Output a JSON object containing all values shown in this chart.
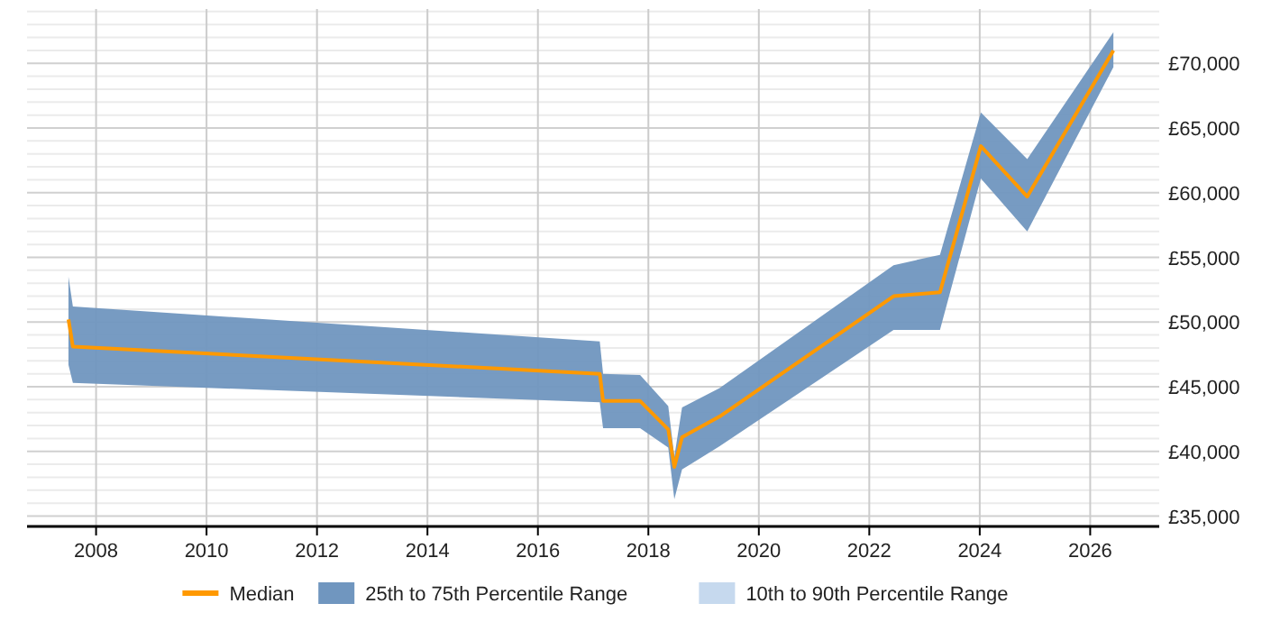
{
  "chart_data": {
    "type": "line",
    "x": [
      2007.5,
      2007.58,
      2017.12,
      2017.18,
      2017.85,
      2018.36,
      2018.47,
      2018.61,
      2019.29,
      2022.44,
      2023.28,
      2024.02,
      2024.86,
      2026.42
    ],
    "series": [
      {
        "name": "Median",
        "type": "line",
        "color": "#ff9900",
        "values": [
          50200,
          48100,
          46000,
          43900,
          43900,
          41700,
          38800,
          41100,
          42700,
          52000,
          52300,
          63600,
          59700,
          71000
        ],
        "lower": [
          46700,
          45300,
          43800,
          41800,
          41800,
          40300,
          36300,
          38600,
          40400,
          49400,
          49400,
          61100,
          57000,
          69700
        ],
        "upper": [
          53500,
          51200,
          48500,
          46000,
          45900,
          43500,
          39600,
          43400,
          44900,
          54400,
          55200,
          66200,
          62600,
          72400
        ]
      },
      {
        "name": "25th to 75th Percentile Range",
        "type": "area",
        "color": "#7096bf",
        "values": [
          null,
          null,
          null,
          null,
          null,
          null,
          null,
          null,
          null,
          null,
          null,
          null,
          null,
          null
        ],
        "lower": [
          null,
          null,
          null,
          null,
          null,
          null,
          null,
          null,
          null,
          null,
          null,
          null,
          null,
          null
        ]
      },
      {
        "name": "10th to 90th Percentile Range",
        "type": "area",
        "color": "#c6d9ee",
        "values": [
          null,
          null,
          null,
          null,
          null,
          null,
          null,
          null,
          null,
          null,
          null,
          null,
          null,
          null
        ],
        "lower": [
          null,
          null,
          null,
          null,
          null,
          null,
          null,
          null,
          null,
          null,
          null,
          null,
          null,
          null
        ]
      }
    ],
    "xlim": [
      2006.75,
      2027.25
    ],
    "xticks": [
      2008,
      2010,
      2012,
      2014,
      2016,
      2018,
      2020,
      2022,
      2024,
      2026
    ],
    "ylim": [
      34200,
      74200
    ],
    "yticks": [
      {
        "value": 35000,
        "label": "£35,000"
      },
      {
        "value": 36000,
        "label": null
      },
      {
        "value": 37000,
        "label": null
      },
      {
        "value": 38000,
        "label": null
      },
      {
        "value": 39000,
        "label": null
      },
      {
        "value": 40000,
        "label": "£40,000"
      },
      {
        "value": 41000,
        "label": null
      },
      {
        "value": 42000,
        "label": null
      },
      {
        "value": 43000,
        "label": null
      },
      {
        "value": 44000,
        "label": null
      },
      {
        "value": 45000,
        "label": "£45,000"
      },
      {
        "value": 46000,
        "label": null
      },
      {
        "value": 47000,
        "label": null
      },
      {
        "value": 48000,
        "label": null
      },
      {
        "value": 49000,
        "label": null
      },
      {
        "value": 50000,
        "label": "£50,000"
      },
      {
        "value": 51000,
        "label": null
      },
      {
        "value": 52000,
        "label": null
      },
      {
        "value": 53000,
        "label": null
      },
      {
        "value": 54000,
        "label": null
      },
      {
        "value": 55000,
        "label": "£55,000"
      },
      {
        "value": 56000,
        "label": null
      },
      {
        "value": 57000,
        "label": null
      },
      {
        "value": 58000,
        "label": null
      },
      {
        "value": 59000,
        "label": null
      },
      {
        "value": 60000,
        "label": "£60,000"
      },
      {
        "value": 61000,
        "label": null
      },
      {
        "value": 62000,
        "label": null
      },
      {
        "value": 63000,
        "label": null
      },
      {
        "value": 64000,
        "label": null
      },
      {
        "value": 65000,
        "label": "£65,000"
      },
      {
        "value": 66000,
        "label": null
      },
      {
        "value": 67000,
        "label": null
      },
      {
        "value": 68000,
        "label": null
      },
      {
        "value": 69000,
        "label": null
      },
      {
        "value": 70000,
        "label": "£70,000"
      },
      {
        "value": 71000,
        "label": null
      },
      {
        "value": 72000,
        "label": null
      },
      {
        "value": 73000,
        "label": null
      },
      {
        "value": 74000,
        "label": null
      }
    ],
    "grid": true,
    "legend": "bottom"
  }
}
